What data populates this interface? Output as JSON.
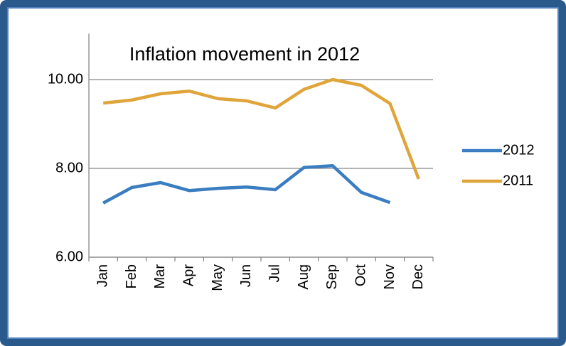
{
  "chart_data": {
    "type": "line",
    "title": "Inflation movement in 2012",
    "categories": [
      "Jan",
      "Feb",
      "Mar",
      "Apr",
      "May",
      "Jun",
      "Jul",
      "Aug",
      "Sep",
      "Oct",
      "Nov",
      "Dec"
    ],
    "series": [
      {
        "name": "2012",
        "color": "#3a7dc1",
        "values": [
          7.22,
          7.57,
          7.68,
          7.5,
          7.55,
          7.58,
          7.52,
          8.02,
          8.06,
          7.46,
          7.23,
          null
        ]
      },
      {
        "name": "2011",
        "color": "#e0a53a",
        "values": [
          9.47,
          9.54,
          9.68,
          9.74,
          9.57,
          9.52,
          9.36,
          9.78,
          10.0,
          9.87,
          9.46,
          7.76
        ]
      }
    ],
    "ylim": [
      6,
      11
    ],
    "yticks": [
      {
        "value": 6,
        "label": "6.00"
      },
      {
        "value": 8,
        "label": "8.00"
      },
      {
        "value": 10,
        "label": "10.00"
      }
    ],
    "grid": true,
    "legend": "right"
  }
}
